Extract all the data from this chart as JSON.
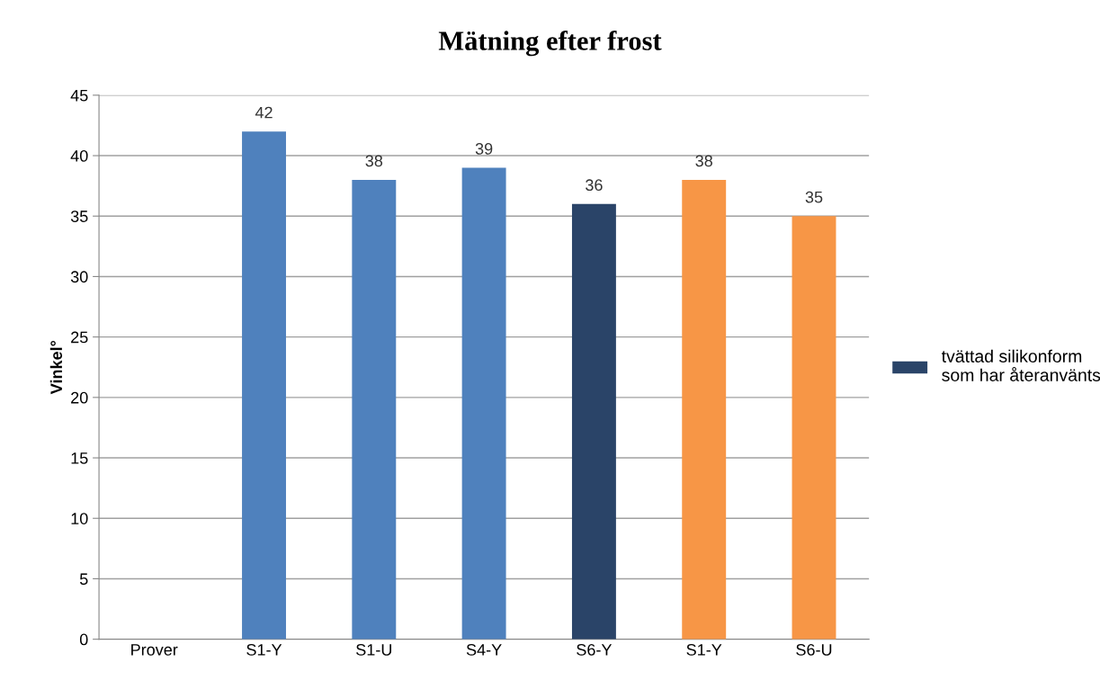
{
  "chart_data": {
    "type": "bar",
    "title": "Mätning efter frost",
    "ylabel": "Vinkel°",
    "categories": [
      "Prover",
      "S1-Y",
      "S1-U",
      "S4-Y",
      "S6-Y",
      "S1-Y",
      "S6-U"
    ],
    "series": [
      {
        "color": "#4f81bd",
        "values": [
          null,
          42,
          38,
          39,
          null,
          null,
          null
        ]
      },
      {
        "name": "tvättad silikonform\nsom har återanvänts",
        "color": "#2a4468",
        "values": [
          null,
          null,
          null,
          null,
          36,
          null,
          null
        ]
      },
      {
        "color": "#f79646",
        "values": [
          null,
          null,
          null,
          null,
          null,
          38,
          35
        ]
      }
    ],
    "ylim": [
      0,
      45
    ],
    "yticks": [
      0,
      5,
      10,
      15,
      20,
      25,
      30,
      35,
      40,
      45
    ],
    "grid": "y",
    "data_labels": true,
    "legend": "right"
  }
}
